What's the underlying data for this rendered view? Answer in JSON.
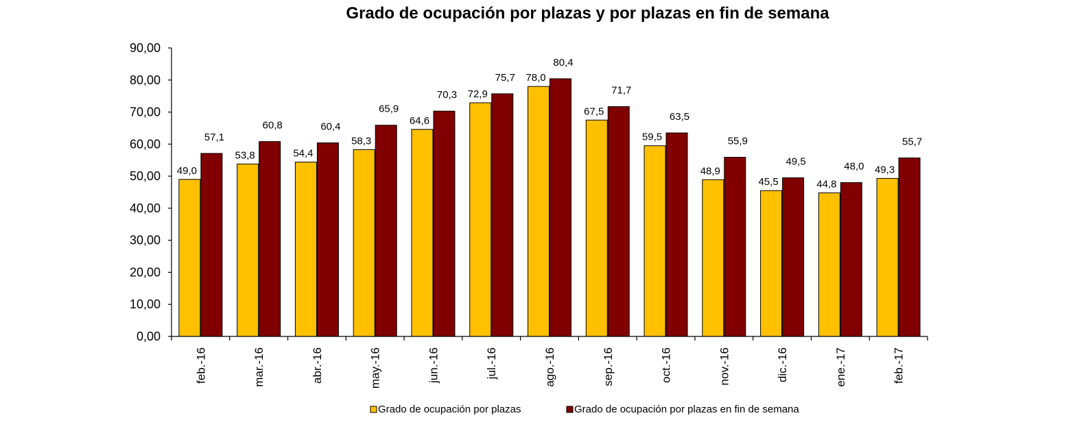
{
  "chart_data": {
    "type": "bar",
    "title": "Grado de ocupación por plazas y por plazas en fin de semana",
    "categories": [
      "feb.-16",
      "mar.-16",
      "abr.-16",
      "may.-16",
      "jun.-16",
      "jul.-16",
      "ago.-16",
      "sep.-16",
      "oct.-16",
      "nov.-16",
      "dic.-16",
      "ene.-17",
      "feb.-17"
    ],
    "series": [
      {
        "name": "Grado de ocupación por plazas",
        "color": "#FFC000",
        "values": [
          49.0,
          53.8,
          54.4,
          58.3,
          64.6,
          72.9,
          78.0,
          67.5,
          59.5,
          48.9,
          45.5,
          44.8,
          49.3
        ],
        "labels": [
          "49,0",
          "53,8",
          "54,4",
          "58,3",
          "64,6",
          "72,9",
          "78,0",
          "67,5",
          "59,5",
          "48,9",
          "45,5",
          "44,8",
          "49,3"
        ]
      },
      {
        "name": "Grado de ocupación por plazas en fin de semana",
        "color": "#800000",
        "values": [
          57.1,
          60.8,
          60.4,
          65.9,
          70.3,
          75.7,
          80.4,
          71.7,
          63.5,
          55.9,
          49.5,
          48.0,
          55.7
        ],
        "labels": [
          "57,1",
          "60,8",
          "60,4",
          "65,9",
          "70,3",
          "75,7",
          "80,4",
          "71,7",
          "63,5",
          "55,9",
          "49,5",
          "48,0",
          "55,7"
        ]
      }
    ],
    "ylim": [
      0,
      90
    ],
    "yticks": [
      "0,00",
      "10,00",
      "20,00",
      "30,00",
      "40,00",
      "50,00",
      "60,00",
      "70,00",
      "80,00",
      "90,00"
    ],
    "grid": false,
    "legend_position": "bottom"
  }
}
